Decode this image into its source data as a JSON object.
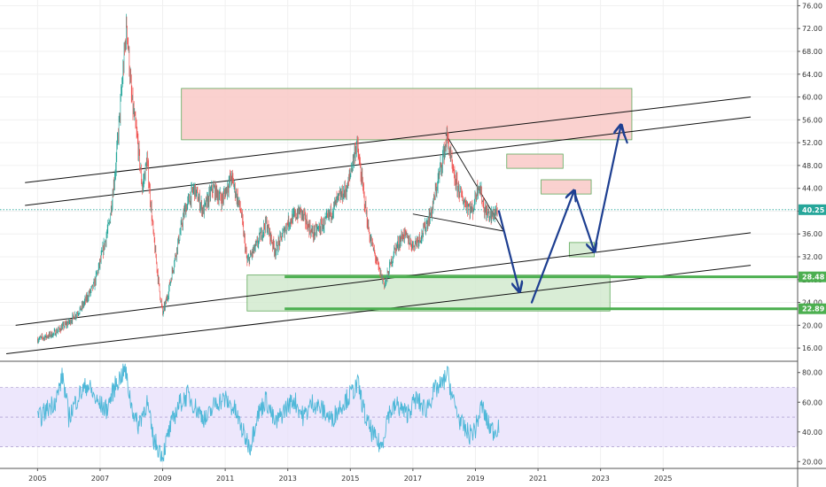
{
  "chart_data": {
    "type": "line",
    "price_panel": {
      "y_ticks": [
        "76.00",
        "72.00",
        "68.00",
        "64.00",
        "60.00",
        "56.00",
        "52.00",
        "48.00",
        "44.00",
        "40.00",
        "36.00",
        "32.00",
        "28.00",
        "24.00",
        "20.00",
        "16.00"
      ],
      "ylim": [
        14,
        77
      ],
      "price_anchors": [
        [
          2005.0,
          17.5
        ],
        [
          2005.5,
          18.5
        ],
        [
          2006.0,
          20.5
        ],
        [
          2006.4,
          23
        ],
        [
          2006.8,
          27
        ],
        [
          2007.0,
          31
        ],
        [
          2007.3,
          38
        ],
        [
          2007.5,
          48
        ],
        [
          2007.7,
          62
        ],
        [
          2007.85,
          73
        ],
        [
          2008.0,
          60
        ],
        [
          2008.2,
          52
        ],
        [
          2008.35,
          44
        ],
        [
          2008.5,
          49
        ],
        [
          2008.7,
          36
        ],
        [
          2008.9,
          26
        ],
        [
          2009.0,
          22
        ],
        [
          2009.15,
          25
        ],
        [
          2009.4,
          32
        ],
        [
          2009.7,
          40
        ],
        [
          2010.0,
          44
        ],
        [
          2010.3,
          40
        ],
        [
          2010.6,
          44
        ],
        [
          2010.9,
          42
        ],
        [
          2011.2,
          46
        ],
        [
          2011.5,
          40
        ],
        [
          2011.7,
          31
        ],
        [
          2012.0,
          34
        ],
        [
          2012.3,
          38
        ],
        [
          2012.6,
          33
        ],
        [
          2013.0,
          38
        ],
        [
          2013.4,
          40
        ],
        [
          2013.8,
          36
        ],
        [
          2014.2,
          38
        ],
        [
          2014.6,
          42
        ],
        [
          2014.9,
          44
        ],
        [
          2015.2,
          52
        ],
        [
          2015.35,
          46
        ],
        [
          2015.6,
          36
        ],
        [
          2015.9,
          30
        ],
        [
          2016.1,
          27
        ],
        [
          2016.4,
          33
        ],
        [
          2016.7,
          36
        ],
        [
          2017.0,
          34
        ],
        [
          2017.3,
          36
        ],
        [
          2017.6,
          40
        ],
        [
          2017.9,
          48
        ],
        [
          2018.1,
          53
        ],
        [
          2018.3,
          46
        ],
        [
          2018.6,
          42
        ],
        [
          2018.9,
          40
        ],
        [
          2019.1,
          45
        ],
        [
          2019.3,
          40
        ],
        [
          2019.5,
          39
        ],
        [
          2019.7,
          40.25
        ]
      ],
      "last_price": "40.25",
      "levels": [
        {
          "label": "28.48",
          "value": 28.48,
          "from": 2012.9
        },
        {
          "label": "22.89",
          "value": 22.89,
          "from": 2012.9
        }
      ],
      "channel_lines": [
        {
          "from": [
            2004.6,
            45.0
          ],
          "to": [
            2027.8,
            60.0
          ]
        },
        {
          "from": [
            2004.6,
            41.0
          ],
          "to": [
            2027.8,
            56.5
          ]
        },
        {
          "from": [
            2004.3,
            20.0
          ],
          "to": [
            2027.8,
            36.2
          ]
        },
        {
          "from": [
            2004.0,
            15.0
          ],
          "to": [
            2027.8,
            30.5
          ]
        }
      ],
      "triangle_lines": [
        {
          "from": [
            2018.05,
            53.5
          ],
          "to": [
            2019.9,
            36.5
          ]
        },
        {
          "from": [
            2017.0,
            39.5
          ],
          "to": [
            2019.9,
            36.5
          ]
        }
      ],
      "zones": [
        {
          "kind": "resistance",
          "x": [
            2009.6,
            2024.0
          ],
          "y": [
            52.5,
            61.5
          ]
        },
        {
          "kind": "resistance",
          "x": [
            2020.0,
            2021.8
          ],
          "y": [
            47.5,
            50.0
          ]
        },
        {
          "kind": "resistance",
          "x": [
            2021.1,
            2022.7
          ],
          "y": [
            43.0,
            45.5
          ]
        },
        {
          "kind": "support",
          "x": [
            2011.7,
            2023.3
          ],
          "y": [
            22.5,
            28.8
          ]
        },
        {
          "kind": "support",
          "x": [
            2022.0,
            2022.8
          ],
          "y": [
            32.0,
            34.5
          ]
        }
      ],
      "projection_arrows": [
        {
          "from": [
            2019.75,
            40.0
          ],
          "to": [
            2020.4,
            26.0
          ]
        },
        {
          "from": [
            2020.8,
            24.0
          ],
          "to": [
            2022.15,
            43.5
          ]
        },
        {
          "from": [
            2022.15,
            43.5
          ],
          "to": [
            2022.8,
            33.0
          ]
        },
        {
          "from": [
            2022.8,
            33.0
          ],
          "to": [
            2023.65,
            55.0
          ]
        },
        {
          "from": [
            2023.65,
            55.0
          ],
          "to": [
            2023.85,
            52.0
          ]
        }
      ]
    },
    "rsi_panel": {
      "y_ticks": [
        "80.00",
        "60.00",
        "40.00",
        "20.00"
      ],
      "ylim": [
        16,
        87
      ],
      "band": [
        30,
        70
      ],
      "rsi_anchors": [
        [
          2005.0,
          48
        ],
        [
          2005.3,
          55
        ],
        [
          2005.6,
          62
        ],
        [
          2005.8,
          78
        ],
        [
          2006.0,
          50
        ],
        [
          2006.3,
          64
        ],
        [
          2006.6,
          72
        ],
        [
          2006.9,
          60
        ],
        [
          2007.2,
          55
        ],
        [
          2007.5,
          72
        ],
        [
          2007.8,
          82
        ],
        [
          2008.0,
          58
        ],
        [
          2008.2,
          44
        ],
        [
          2008.5,
          60
        ],
        [
          2008.7,
          35
        ],
        [
          2008.9,
          28
        ],
        [
          2009.0,
          24
        ],
        [
          2009.2,
          40
        ],
        [
          2009.5,
          58
        ],
        [
          2009.8,
          65
        ],
        [
          2010.1,
          55
        ],
        [
          2010.4,
          48
        ],
        [
          2010.7,
          60
        ],
        [
          2011.0,
          62
        ],
        [
          2011.3,
          55
        ],
        [
          2011.6,
          38
        ],
        [
          2011.8,
          30
        ],
        [
          2012.0,
          50
        ],
        [
          2012.3,
          62
        ],
        [
          2012.6,
          45
        ],
        [
          2012.9,
          55
        ],
        [
          2013.2,
          62
        ],
        [
          2013.5,
          50
        ],
        [
          2013.8,
          60
        ],
        [
          2014.1,
          55
        ],
        [
          2014.4,
          48
        ],
        [
          2014.7,
          58
        ],
        [
          2015.0,
          65
        ],
        [
          2015.25,
          72
        ],
        [
          2015.5,
          48
        ],
        [
          2015.8,
          35
        ],
        [
          2016.0,
          30
        ],
        [
          2016.2,
          52
        ],
        [
          2016.5,
          58
        ],
        [
          2016.8,
          52
        ],
        [
          2017.1,
          62
        ],
        [
          2017.4,
          55
        ],
        [
          2017.7,
          68
        ],
        [
          2017.95,
          72
        ],
        [
          2018.1,
          80
        ],
        [
          2018.3,
          60
        ],
        [
          2018.55,
          45
        ],
        [
          2018.8,
          38
        ],
        [
          2019.0,
          42
        ],
        [
          2019.2,
          58
        ],
        [
          2019.4,
          45
        ],
        [
          2019.6,
          40
        ],
        [
          2019.75,
          45
        ]
      ]
    },
    "x_axis": {
      "ticks": [
        "2005",
        "2007",
        "2009",
        "2011",
        "2013",
        "2015",
        "2017",
        "2019",
        "2021",
        "2023",
        "2025"
      ],
      "xlim": [
        2003.8,
        2029.3
      ]
    },
    "colors": {
      "price_up": "#26a69a",
      "price_down": "#ef5350",
      "rsi_line": "#4fb8d8",
      "rsi_band": "#e6ddfb",
      "resistance_zone": "#f9c9c7",
      "support_zone": "#cfe8cc",
      "support_line": "#4caf50",
      "arrow": "#1e3f91",
      "last_price_badge": "#26a69a",
      "level_badge": "#4caf50"
    }
  }
}
